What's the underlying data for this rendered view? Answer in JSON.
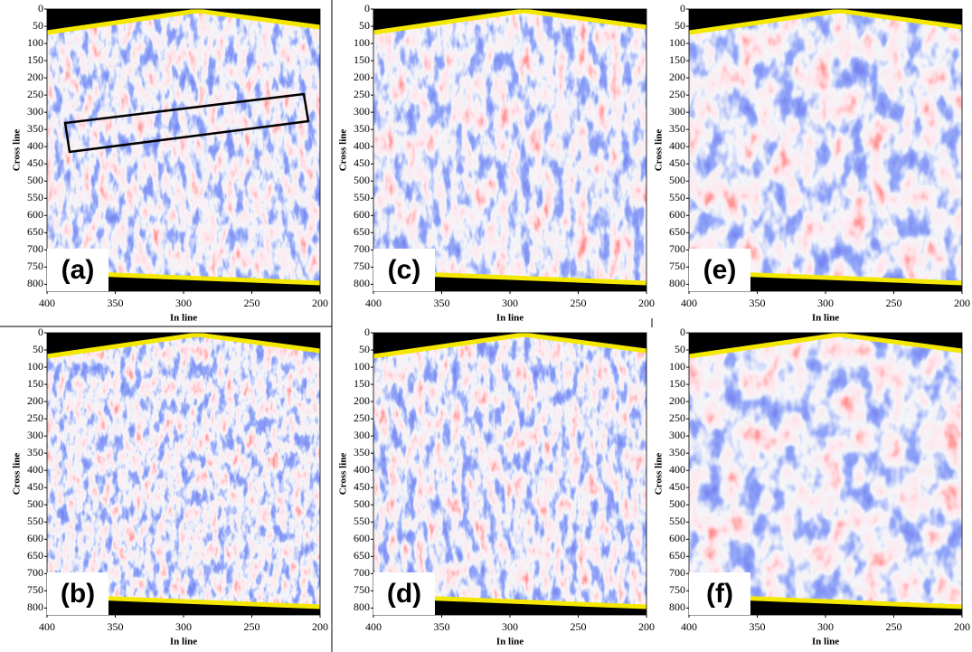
{
  "chart_data": [
    {
      "type": "image",
      "label": "(a)",
      "xlabel": "In line",
      "ylabel": "Cross line",
      "xlim": [
        400,
        200
      ],
      "ylim": [
        0,
        820
      ],
      "xticks": [
        400,
        350,
        300,
        250,
        200
      ],
      "yticks": [
        0,
        50,
        100,
        150,
        200,
        250,
        300,
        350,
        400,
        450,
        500,
        550,
        600,
        650,
        700,
        750,
        800
      ]
    },
    {
      "type": "image",
      "label": "(b)",
      "xlabel": "In line",
      "ylabel": "Cross line",
      "xlim": [
        400,
        200
      ],
      "ylim": [
        0,
        820
      ],
      "xticks": [
        400,
        350,
        300,
        250,
        200
      ],
      "yticks": [
        0,
        50,
        100,
        150,
        200,
        250,
        300,
        350,
        400,
        450,
        500,
        550,
        600,
        650,
        700,
        750,
        800
      ]
    },
    {
      "type": "image",
      "label": "(c)",
      "xlabel": "In line",
      "ylabel": "Cross line",
      "xlim": [
        400,
        200
      ],
      "ylim": [
        0,
        820
      ],
      "xticks": [
        400,
        350,
        300,
        250,
        200
      ],
      "yticks": [
        0,
        50,
        100,
        150,
        200,
        250,
        300,
        350,
        400,
        450,
        500,
        550,
        600,
        650,
        700,
        750,
        800
      ]
    },
    {
      "type": "image",
      "label": "(d)",
      "xlabel": "In line",
      "ylabel": "Cross line",
      "xlim": [
        400,
        200
      ],
      "ylim": [
        0,
        820
      ],
      "xticks": [
        400,
        350,
        300,
        250,
        200
      ],
      "yticks": [
        0,
        50,
        100,
        150,
        200,
        250,
        300,
        350,
        400,
        450,
        500,
        550,
        600,
        650,
        700,
        750,
        800
      ]
    },
    {
      "type": "image",
      "label": "(e)",
      "xlabel": "In line",
      "ylabel": "Cross line",
      "xlim": [
        400,
        200
      ],
      "ylim": [
        0,
        820
      ],
      "xticks": [
        400,
        350,
        300,
        250,
        200
      ],
      "yticks": [
        0,
        50,
        100,
        150,
        200,
        250,
        300,
        350,
        400,
        450,
        500,
        550,
        600,
        650,
        700,
        750,
        800
      ]
    },
    {
      "type": "image",
      "label": "(f)",
      "xlabel": "In line",
      "ylabel": "Cross line",
      "xlim": [
        400,
        200
      ],
      "ylim": [
        0,
        820
      ],
      "xticks": [
        400,
        350,
        300,
        250,
        200
      ],
      "yticks": [
        0,
        50,
        100,
        150,
        200,
        250,
        300,
        350,
        400,
        450,
        500,
        550,
        600,
        650,
        700,
        750,
        800
      ]
    }
  ]
}
